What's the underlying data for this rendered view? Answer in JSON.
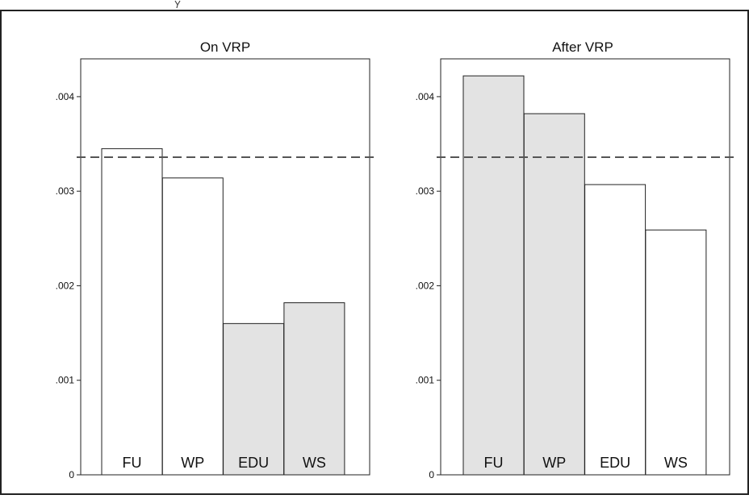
{
  "chart_data": [
    {
      "type": "bar",
      "title": "On VRP",
      "categories": [
        "FU",
        "WP",
        "EDU",
        "WS"
      ],
      "values": [
        0.00345,
        0.00314,
        0.0016,
        0.00182
      ],
      "highlighted": [
        false,
        false,
        true,
        true
      ],
      "reference_line": 0.00336,
      "ylim": [
        0,
        0.0044
      ],
      "yticks": [
        0,
        0.001,
        0.002,
        0.003,
        0.004
      ],
      "ytick_labels": [
        "0",
        ".001",
        ".002",
        ".003",
        ".004"
      ],
      "xlabel": "",
      "ylabel": "",
      "grid": false
    },
    {
      "type": "bar",
      "title": "After VRP",
      "categories": [
        "FU",
        "WP",
        "EDU",
        "WS"
      ],
      "values": [
        0.00422,
        0.00382,
        0.00307,
        0.00259
      ],
      "highlighted": [
        true,
        true,
        false,
        false
      ],
      "reference_line": 0.00336,
      "ylim": [
        0,
        0.0044
      ],
      "yticks": [
        0,
        0.001,
        0.002,
        0.003,
        0.004
      ],
      "ytick_labels": [
        "0",
        ".001",
        ".002",
        ".003",
        ".004"
      ],
      "xlabel": "",
      "ylabel": "",
      "grid": false
    }
  ],
  "colors": {
    "highlight_fill": "#e3e3e3",
    "plain_fill": "#ffffff",
    "bar_stroke": "#222222",
    "reference_line": "#555555"
  }
}
